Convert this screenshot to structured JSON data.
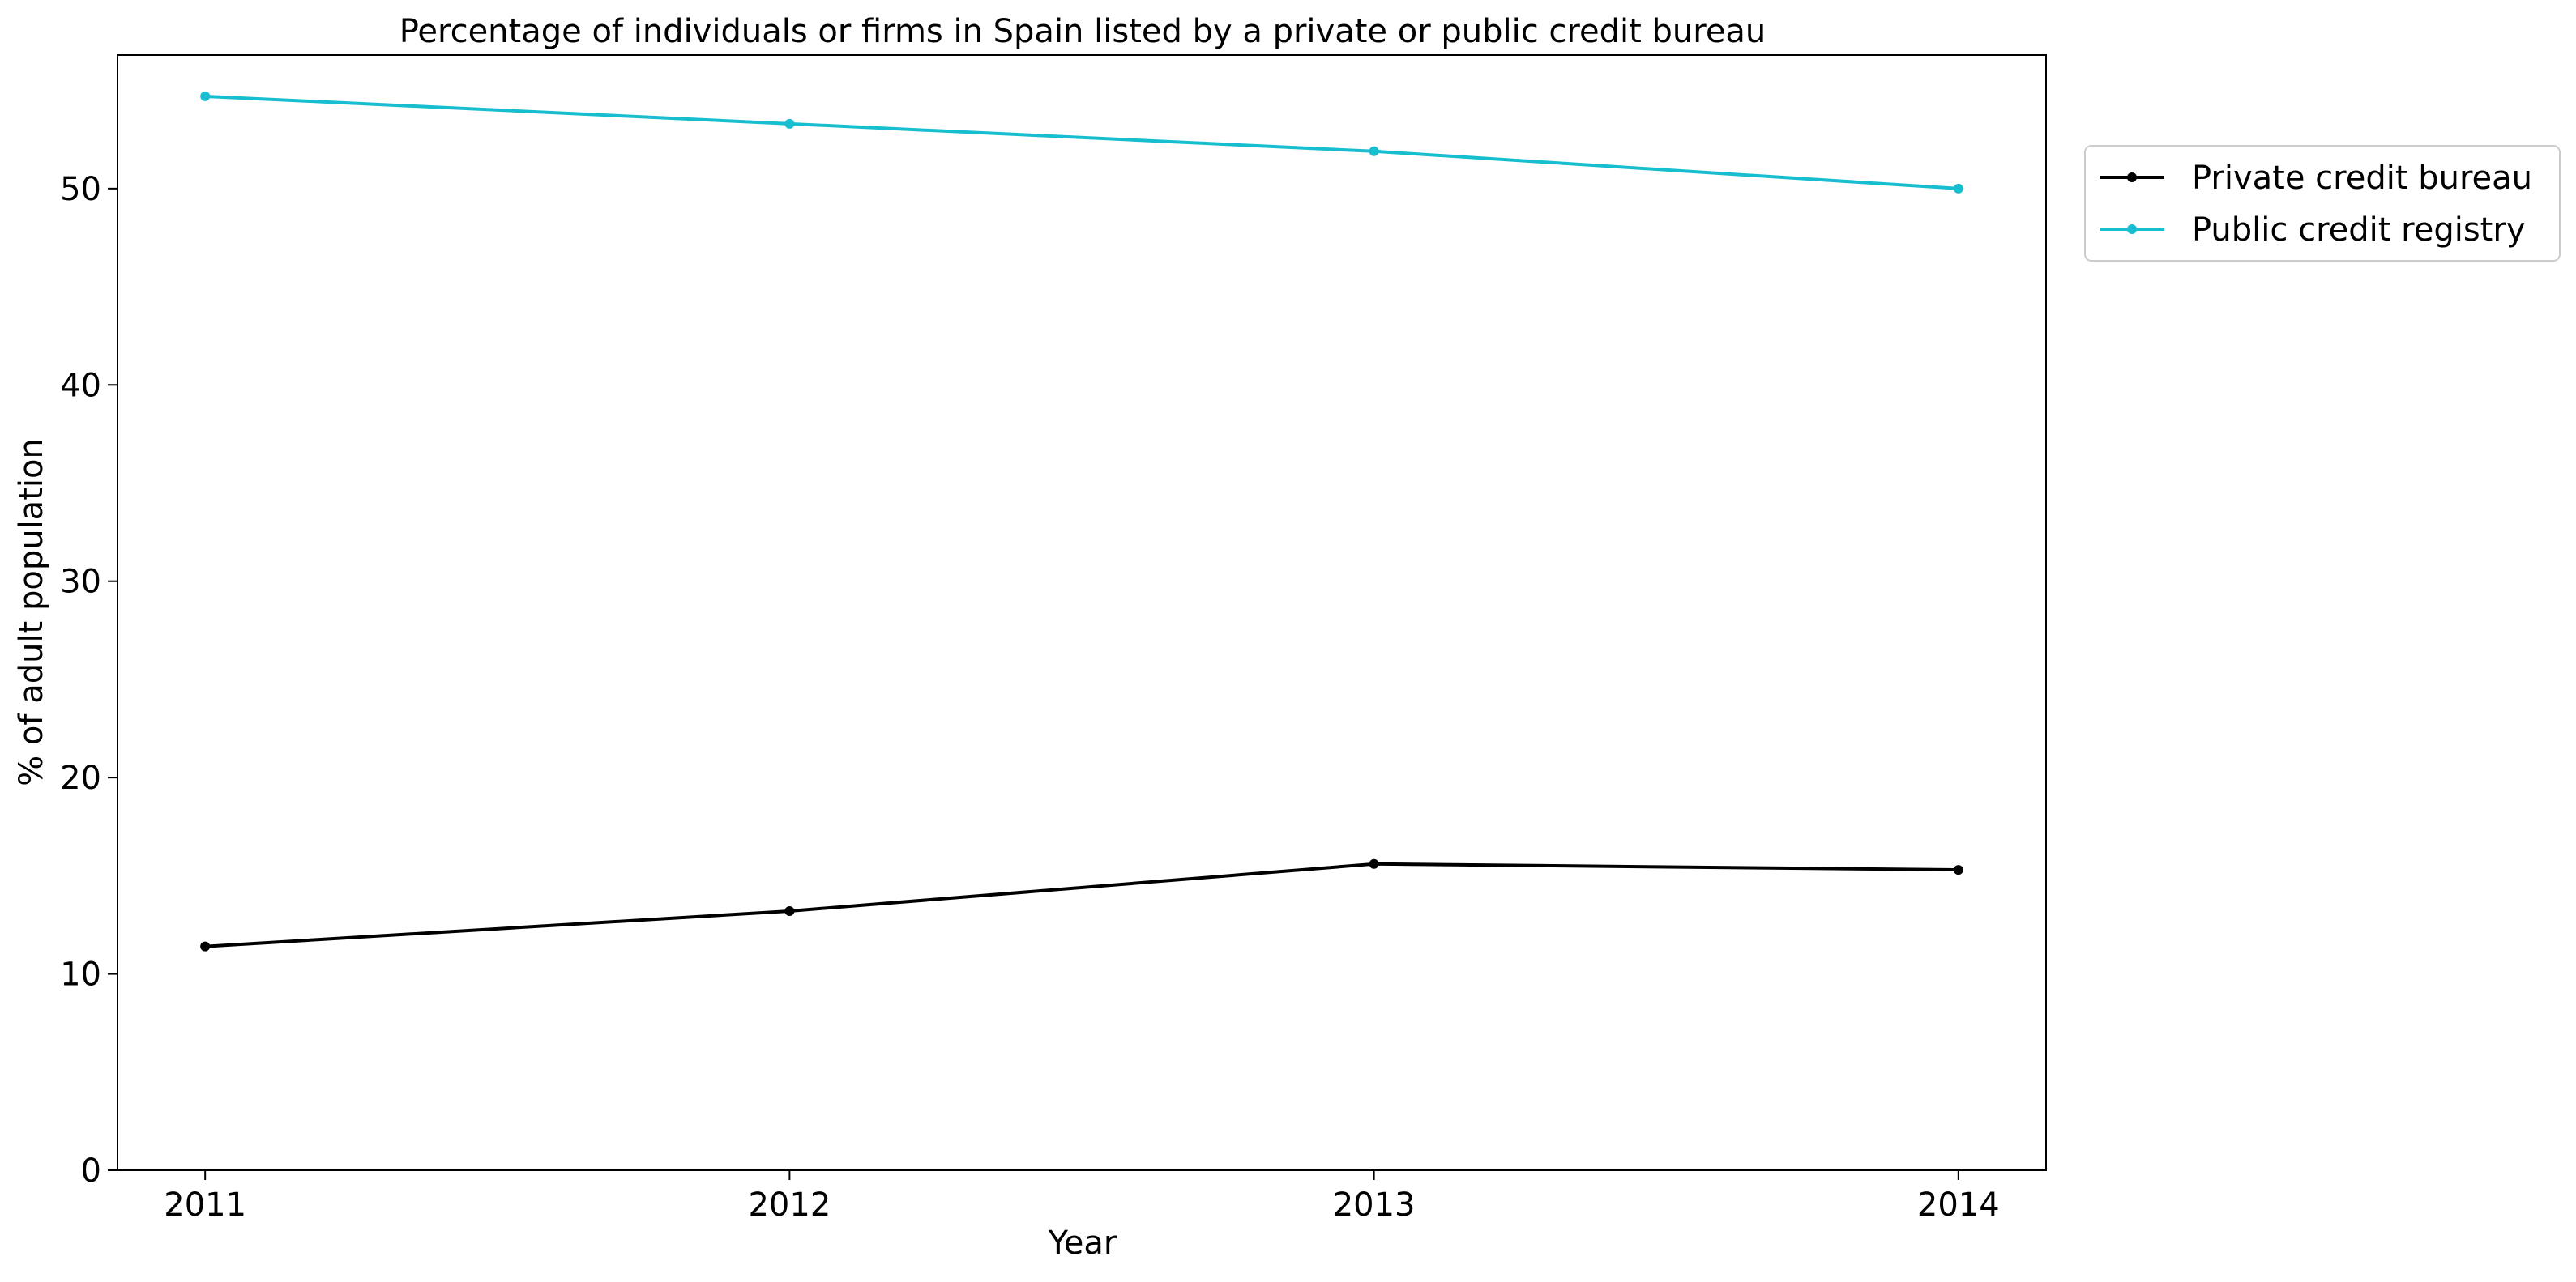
{
  "chart_data": {
    "type": "line",
    "title": "Percentage of individuals or firms in Spain listed by a private or public credit bureau",
    "xlabel": "Year",
    "ylabel": "% of adult population",
    "x": [
      2011,
      2012,
      2013,
      2014
    ],
    "x_tick_labels": [
      "2011",
      "2012",
      "2013",
      "2014"
    ],
    "y_ticks": [
      0,
      10,
      20,
      30,
      40,
      50
    ],
    "y_tick_labels": [
      "0",
      "10",
      "20",
      "30",
      "40",
      "50"
    ],
    "ylim": [
      0,
      56.8
    ],
    "xlim": [
      2010.85,
      2014.15
    ],
    "grid": false,
    "legend_position": "outside upper right",
    "series": [
      {
        "name": "Private credit bureau",
        "color": "#000000",
        "marker": "dot",
        "values": [
          11.4,
          13.2,
          15.6,
          15.3
        ]
      },
      {
        "name": "Public credit registry",
        "color": "#17becf",
        "marker": "dot",
        "values": [
          54.7,
          53.3,
          51.9,
          50.0
        ]
      }
    ]
  }
}
